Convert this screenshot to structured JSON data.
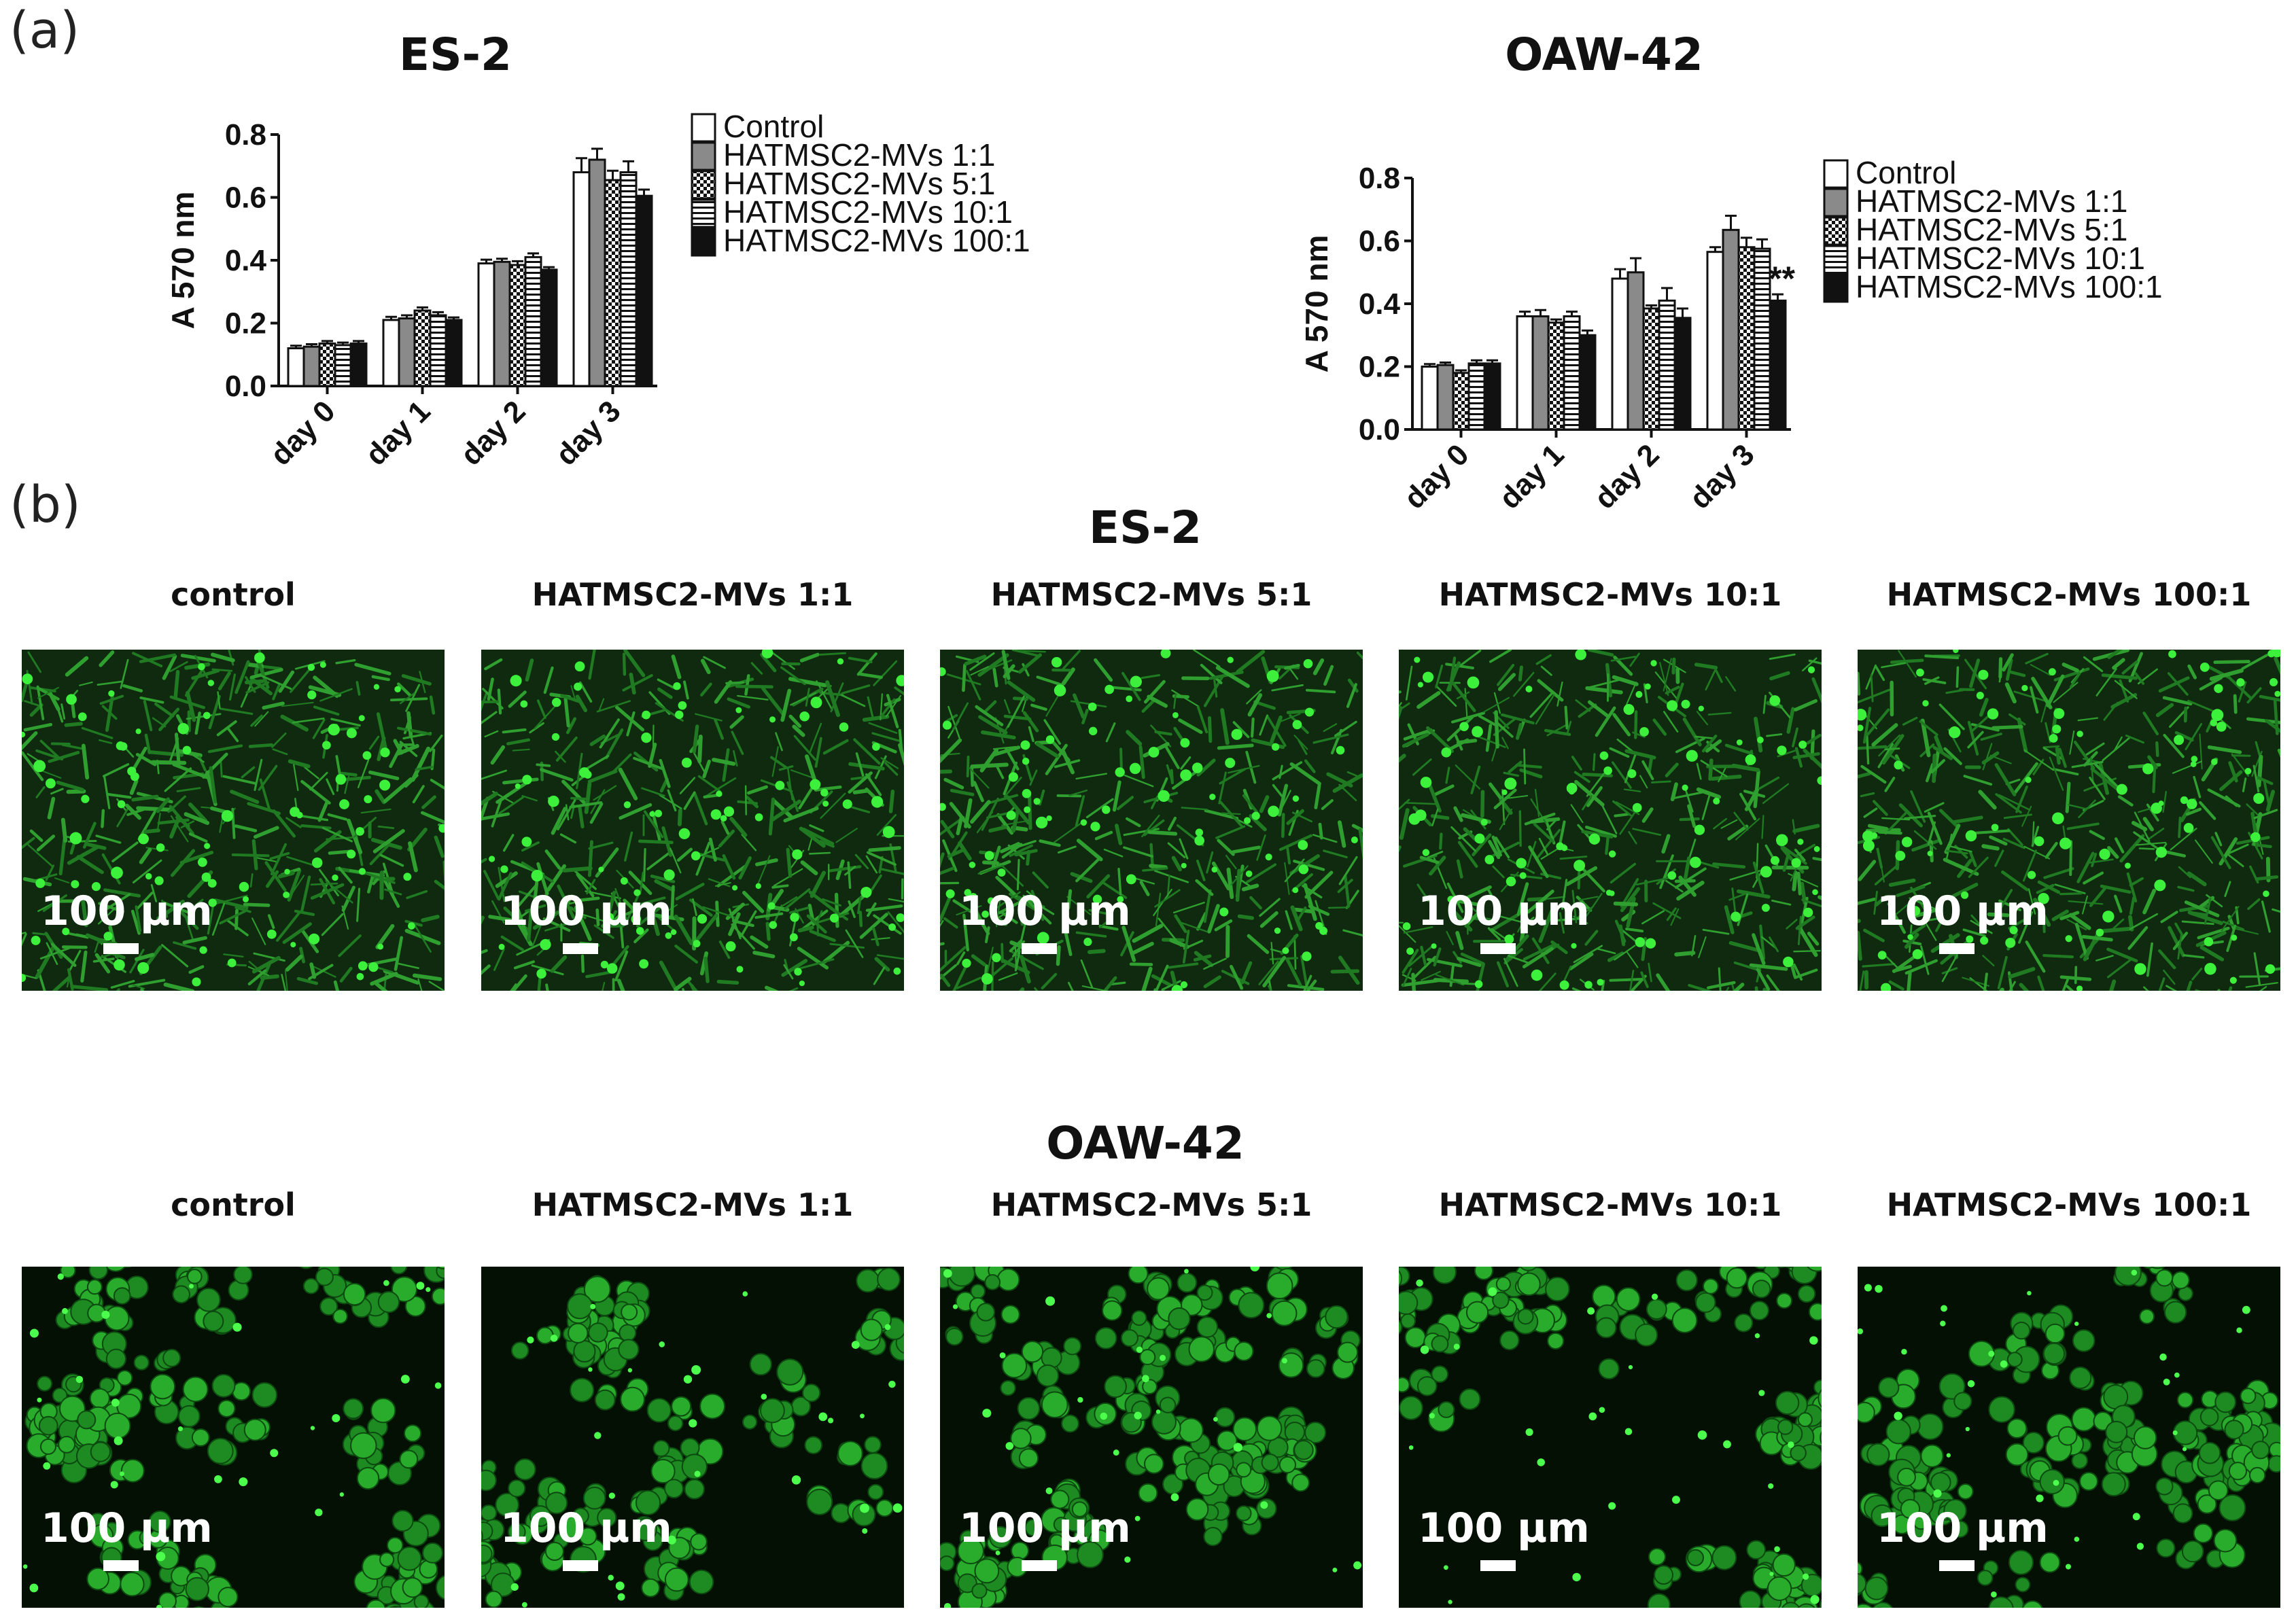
{
  "panel_a_label": "(a)",
  "panel_b_label": "(b)",
  "legend": [
    {
      "name": "Control",
      "pattern": "white"
    },
    {
      "name": "HATMSC2-MVs 1:1",
      "pattern": "gray"
    },
    {
      "name": "HATMSC2-MVs 5:1",
      "pattern": "checker"
    },
    {
      "name": "HATMSC2-MVs 10:1",
      "pattern": "hstripe"
    },
    {
      "name": "HATMSC2-MVs 100:1",
      "pattern": "black"
    }
  ],
  "chart_data": [
    {
      "type": "bar",
      "title": "ES-2",
      "ylabel": "A 570 nm",
      "xlabel": "",
      "categories": [
        "day 0",
        "day 1",
        "day 2",
        "day 3"
      ],
      "ylim": [
        0,
        0.8
      ],
      "yticks": [
        "0.0",
        "0.2",
        "0.4",
        "0.6",
        "0.8"
      ],
      "legend_position": "right",
      "series": [
        {
          "name": "Control",
          "values": [
            0.12,
            0.21,
            0.39,
            0.68
          ],
          "errors": [
            0.008,
            0.01,
            0.012,
            0.045
          ]
        },
        {
          "name": "HATMSC2-MVs 1:1",
          "values": [
            0.125,
            0.215,
            0.395,
            0.72
          ],
          "errors": [
            0.008,
            0.01,
            0.01,
            0.035
          ]
        },
        {
          "name": "HATMSC2-MVs 5:1",
          "values": [
            0.135,
            0.24,
            0.385,
            0.655
          ],
          "errors": [
            0.008,
            0.01,
            0.012,
            0.03
          ]
        },
        {
          "name": "HATMSC2-MVs 10:1",
          "values": [
            0.13,
            0.225,
            0.41,
            0.68
          ],
          "errors": [
            0.008,
            0.01,
            0.012,
            0.035
          ]
        },
        {
          "name": "HATMSC2-MVs 100:1",
          "values": [
            0.135,
            0.21,
            0.37,
            0.605
          ],
          "errors": [
            0.008,
            0.008,
            0.008,
            0.02
          ]
        }
      ],
      "annotations": []
    },
    {
      "type": "bar",
      "title": "OAW-42",
      "ylabel": "A 570 nm",
      "xlabel": "",
      "categories": [
        "day 0",
        "day 1",
        "day 2",
        "day 3"
      ],
      "ylim": [
        0,
        0.8
      ],
      "yticks": [
        "0.0",
        "0.2",
        "0.4",
        "0.6",
        "0.8"
      ],
      "legend_position": "right",
      "series": [
        {
          "name": "Control",
          "values": [
            0.2,
            0.36,
            0.48,
            0.565
          ],
          "errors": [
            0.008,
            0.015,
            0.03,
            0.015
          ]
        },
        {
          "name": "HATMSC2-MVs 1:1",
          "values": [
            0.205,
            0.36,
            0.5,
            0.635
          ],
          "errors": [
            0.008,
            0.02,
            0.045,
            0.045
          ]
        },
        {
          "name": "HATMSC2-MVs 5:1",
          "values": [
            0.18,
            0.34,
            0.385,
            0.58
          ],
          "errors": [
            0.008,
            0.01,
            0.01,
            0.03
          ]
        },
        {
          "name": "HATMSC2-MVs 10:1",
          "values": [
            0.21,
            0.36,
            0.41,
            0.575
          ],
          "errors": [
            0.01,
            0.015,
            0.04,
            0.03
          ]
        },
        {
          "name": "HATMSC2-MVs 100:1",
          "values": [
            0.21,
            0.3,
            0.355,
            0.41
          ],
          "errors": [
            0.01,
            0.015,
            0.03,
            0.02
          ]
        }
      ],
      "annotations": [
        {
          "category": "day 3",
          "series": "HATMSC2-MVs 100:1",
          "text": "**"
        }
      ]
    }
  ],
  "micrographs": {
    "scale_label": "100 µm",
    "conditions": [
      "control",
      "HATMSC2-MVs 1:1",
      "HATMSC2-MVs 5:1",
      "HATMSC2-MVs 10:1",
      "HATMSC2-MVs 100:1"
    ],
    "rows": [
      {
        "title": "ES-2",
        "morphology": "spindle"
      },
      {
        "title": "OAW-42",
        "morphology": "clustered"
      }
    ]
  }
}
